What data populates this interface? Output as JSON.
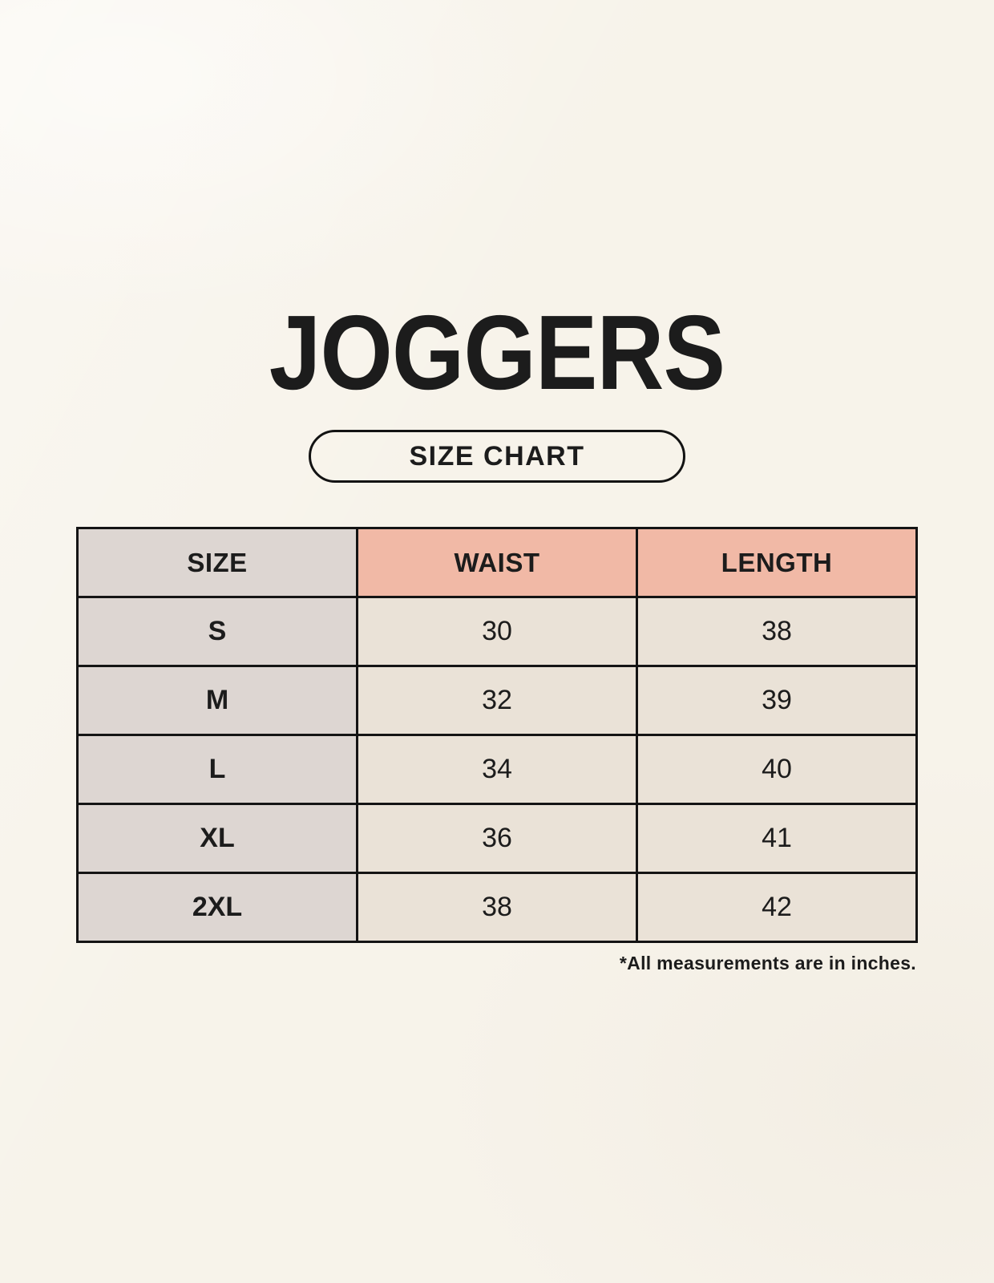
{
  "title": "JOGGERS",
  "badge": {
    "label": "SIZE CHART"
  },
  "table": {
    "headers": [
      "SIZE",
      "WAIST",
      "LENGTH"
    ],
    "rows": [
      {
        "size": "S",
        "waist": "30",
        "length": "38"
      },
      {
        "size": "M",
        "waist": "32",
        "length": "39"
      },
      {
        "size": "L",
        "waist": "34",
        "length": "40"
      },
      {
        "size": "XL",
        "waist": "36",
        "length": "41"
      },
      {
        "size": "2XL",
        "waist": "38",
        "length": "42"
      }
    ]
  },
  "note": "*All measurements are in inches.",
  "colors": {
    "background": "#f7f3ea",
    "header_pink": "#f1b9a6",
    "size_column_gray": "#ddd6d2",
    "cell_beige": "#eae2d7",
    "border": "#141414",
    "text": "#1c1c1c"
  }
}
